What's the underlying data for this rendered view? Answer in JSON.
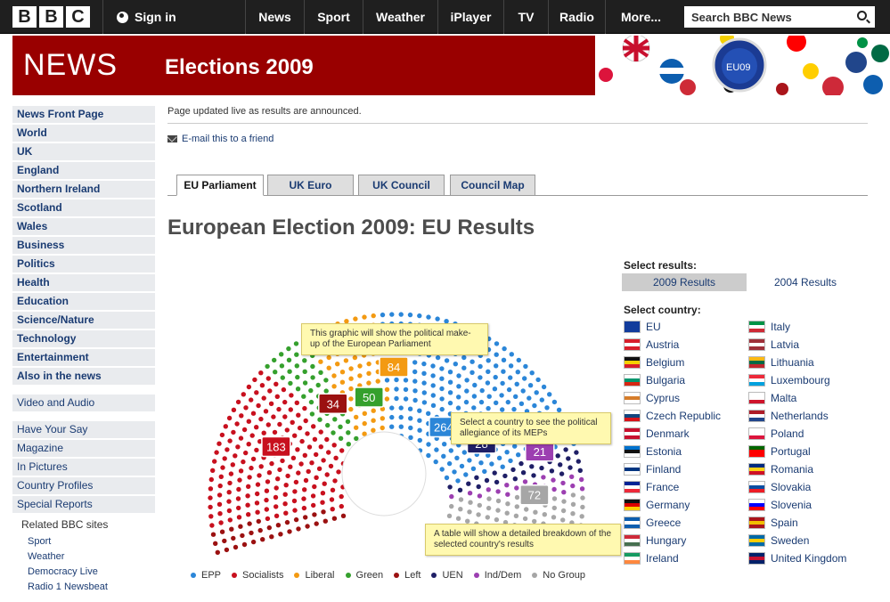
{
  "header": {
    "logo": [
      "B",
      "B",
      "C"
    ],
    "sign_in": "Sign in",
    "nav": [
      "News",
      "Sport",
      "Weather",
      "iPlayer",
      "TV",
      "Radio",
      "More..."
    ],
    "search_placeholder": "Search BBC News"
  },
  "banner": {
    "news": "NEWS",
    "section": "Elections 2009",
    "badge": "EU09"
  },
  "sidebar": {
    "primary": [
      "News Front Page",
      "World",
      "UK",
      "England",
      "Northern Ireland",
      "Scotland",
      "Wales",
      "Business",
      "Politics",
      "Health",
      "Education",
      "Science/Nature",
      "Technology",
      "Entertainment",
      "Also in the news"
    ],
    "video": "Video and Audio",
    "secondary": [
      "Have Your Say",
      "Magazine",
      "In Pictures",
      "Country Profiles",
      "Special Reports"
    ],
    "related_title": "Related BBC sites",
    "related": [
      "Sport",
      "Weather",
      "Democracy Live",
      "Radio 1 Newsbeat"
    ]
  },
  "main": {
    "updated": "Page updated live as results are announced.",
    "email": "E-mail this to a friend",
    "tabs": [
      "EU Parliament",
      "UK Euro",
      "UK Council",
      "Council Map"
    ],
    "title": "European Election 2009: EU Results",
    "tips": {
      "graphic": "This graphic will show the political make-up of the European Parliament",
      "country": "Select a country to see the political allegiance of its MEPs",
      "table": "A table will show a detailed breakdown of the selected country's results"
    }
  },
  "chart_data": {
    "type": "parliament",
    "series": [
      {
        "name": "EPP",
        "seats": 264,
        "color": "#2b86d8"
      },
      {
        "name": "Socialists",
        "seats": 183,
        "color": "#c8101e"
      },
      {
        "name": "Liberal",
        "seats": 84,
        "color": "#f39a12"
      },
      {
        "name": "Green",
        "seats": 50,
        "color": "#35a02d"
      },
      {
        "name": "Left",
        "seats": 34,
        "color": "#9b1111"
      },
      {
        "name": "UEN",
        "seats": 28,
        "color": "#1f1f66"
      },
      {
        "name": "Ind/Dem",
        "seats": 21,
        "color": "#9c3fb1"
      },
      {
        "name": "No Group",
        "seats": 72,
        "color": "#a6a6a6"
      }
    ]
  },
  "results_panel": {
    "select_results": "Select results:",
    "years": [
      "2009 Results",
      "2004 Results"
    ],
    "select_country": "Select country:",
    "countries_left": [
      "EU",
      "Austria",
      "Belgium",
      "Bulgaria",
      "Cyprus",
      "Czech Republic",
      "Denmark",
      "Estonia",
      "Finland",
      "France",
      "Germany",
      "Greece",
      "Hungary",
      "Ireland"
    ],
    "countries_right": [
      "Italy",
      "Latvia",
      "Lithuania",
      "Luxembourg",
      "Malta",
      "Netherlands",
      "Poland",
      "Portugal",
      "Romania",
      "Slovakia",
      "Slovenia",
      "Spain",
      "Sweden",
      "United Kingdom"
    ],
    "flag_colors_left": [
      [
        "#123c9c",
        "#123c9c",
        "#123c9c"
      ],
      [
        "#d81e2a",
        "#ffffff",
        "#d81e2a"
      ],
      [
        "#111111",
        "#f5d000",
        "#d81e2a"
      ],
      [
        "#ffffff",
        "#00966e",
        "#d62612"
      ],
      [
        "#ffffff",
        "#d67d2a",
        "#ffffff"
      ],
      [
        "#ffffff",
        "#11457e",
        "#d7141a"
      ],
      [
        "#c8102e",
        "#ffffff",
        "#c8102e"
      ],
      [
        "#0072ce",
        "#111111",
        "#ffffff"
      ],
      [
        "#ffffff",
        "#003580",
        "#ffffff"
      ],
      [
        "#002395",
        "#ffffff",
        "#ed2939"
      ],
      [
        "#111111",
        "#dd0000",
        "#ffce00"
      ],
      [
        "#0d5eaf",
        "#ffffff",
        "#0d5eaf"
      ],
      [
        "#ce2939",
        "#ffffff",
        "#477050"
      ],
      [
        "#169b62",
        "#ffffff",
        "#ff883e"
      ]
    ],
    "flag_colors_right": [
      [
        "#009246",
        "#ffffff",
        "#ce2b37"
      ],
      [
        "#9e3039",
        "#ffffff",
        "#9e3039"
      ],
      [
        "#fdb913",
        "#006a44",
        "#c1272d"
      ],
      [
        "#ed2939",
        "#ffffff",
        "#00a1de"
      ],
      [
        "#ffffff",
        "#ffffff",
        "#cf142b"
      ],
      [
        "#ae1c28",
        "#ffffff",
        "#21468b"
      ],
      [
        "#ffffff",
        "#ffffff",
        "#dc143c"
      ],
      [
        "#006600",
        "#ff0000",
        "#ff0000"
      ],
      [
        "#002b7f",
        "#fcd116",
        "#ce1126"
      ],
      [
        "#ffffff",
        "#0b4ea2",
        "#ee1c25"
      ],
      [
        "#ffffff",
        "#0000ff",
        "#ff0000"
      ],
      [
        "#aa151b",
        "#f1bf00",
        "#aa151b"
      ],
      [
        "#006aa7",
        "#fecc00",
        "#006aa7"
      ],
      [
        "#012169",
        "#c8102e",
        "#012169"
      ]
    ]
  }
}
